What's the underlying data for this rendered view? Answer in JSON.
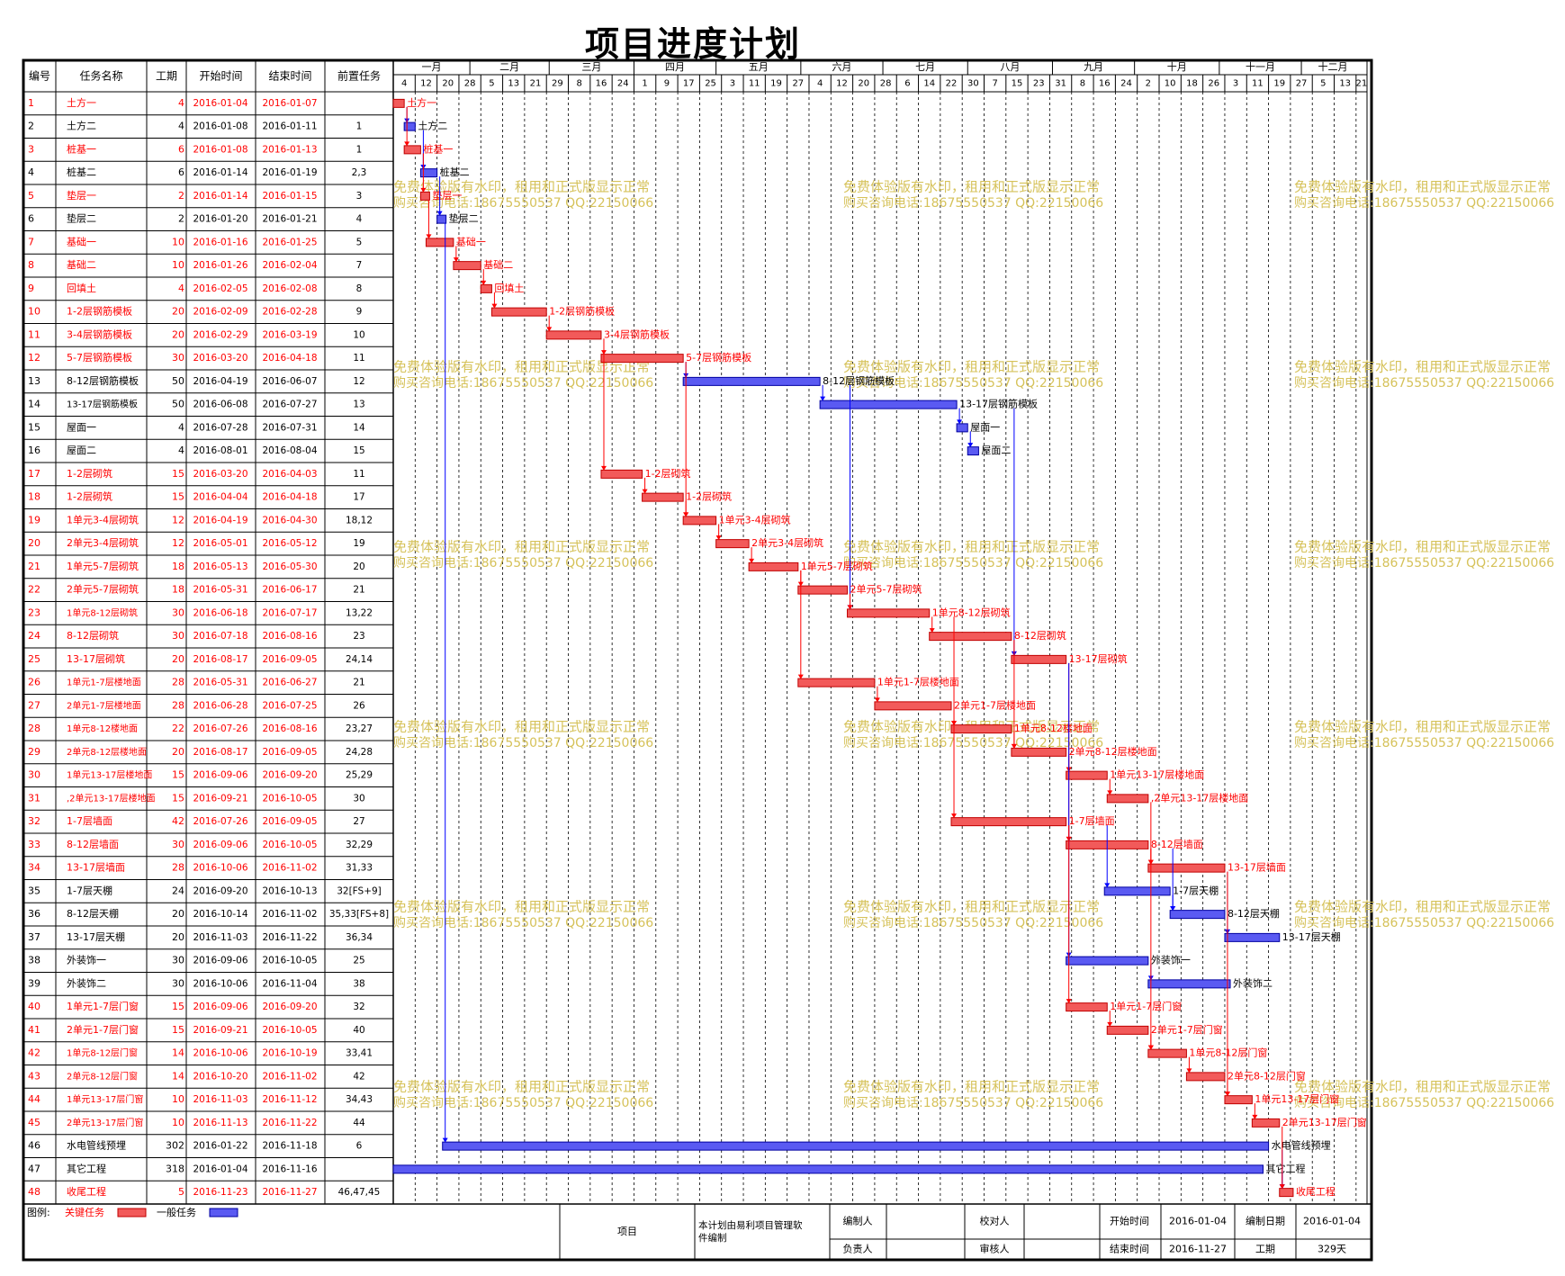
{
  "title": "项目进度计划",
  "colors": {
    "critical": "#f25a5a",
    "critical_line": "#ff0000",
    "normal": "#5a5af2",
    "normal_line": "#0000ff",
    "watermark": "#d6c25a"
  },
  "table_headers": [
    "编号",
    "任务名称",
    "工期",
    "开始时间",
    "结束时间",
    "前置任务"
  ],
  "months": [
    "一月",
    "二月",
    "三月",
    "四月",
    "五月",
    "六月",
    "七月",
    "八月",
    "九月",
    "十月",
    "十一月",
    "十二月"
  ],
  "day_ticks": [
    "4",
    "12",
    "20",
    "28",
    "5",
    "13",
    "21",
    "29",
    "8",
    "16",
    "24",
    "1",
    "9",
    "17",
    "25",
    "3",
    "11",
    "19",
    "27",
    "4",
    "12",
    "20",
    "28",
    "6",
    "14",
    "22",
    "30",
    "7",
    "15",
    "23",
    "31",
    "8",
    "16",
    "24",
    "2",
    "10",
    "18",
    "26",
    "3",
    "11",
    "19",
    "27",
    "5",
    "13",
    "21"
  ],
  "watermark": {
    "line1": "免费体验版有水印，租用和正式版显示正常",
    "line2": "购买咨询电话:18675550537 QQ:22150066"
  },
  "chart_data": {
    "type": "gantt",
    "title": "项目进度计划",
    "x_range": [
      "2016-01-04",
      "2016-12-23"
    ],
    "tasks": [
      {
        "id": "1",
        "name": "土方一",
        "dur": "4",
        "start": "2016-01-04",
        "end": "2016-01-07",
        "pred": "",
        "critical": true
      },
      {
        "id": "2",
        "name": "土方二",
        "dur": "4",
        "start": "2016-01-08",
        "end": "2016-01-11",
        "pred": "1",
        "critical": false
      },
      {
        "id": "3",
        "name": "桩基一",
        "dur": "6",
        "start": "2016-01-08",
        "end": "2016-01-13",
        "pred": "1",
        "critical": true
      },
      {
        "id": "4",
        "name": "桩基二",
        "dur": "6",
        "start": "2016-01-14",
        "end": "2016-01-19",
        "pred": "2,3",
        "critical": false
      },
      {
        "id": "5",
        "name": "垫层一",
        "dur": "2",
        "start": "2016-01-14",
        "end": "2016-01-15",
        "pred": "3",
        "critical": true
      },
      {
        "id": "6",
        "name": "垫层二",
        "dur": "2",
        "start": "2016-01-20",
        "end": "2016-01-21",
        "pred": "4",
        "critical": false
      },
      {
        "id": "7",
        "name": "基础一",
        "dur": "10",
        "start": "2016-01-16",
        "end": "2016-01-25",
        "pred": "5",
        "critical": true
      },
      {
        "id": "8",
        "name": "基础二",
        "dur": "10",
        "start": "2016-01-26",
        "end": "2016-02-04",
        "pred": "7",
        "critical": true
      },
      {
        "id": "9",
        "name": "回填土",
        "dur": "4",
        "start": "2016-02-05",
        "end": "2016-02-08",
        "pred": "8",
        "critical": true
      },
      {
        "id": "10",
        "name": "1-2层钢筋模板",
        "dur": "20",
        "start": "2016-02-09",
        "end": "2016-02-28",
        "pred": "9",
        "critical": true
      },
      {
        "id": "11",
        "name": "3-4层钢筋模板",
        "dur": "20",
        "start": "2016-02-29",
        "end": "2016-03-19",
        "pred": "10",
        "critical": true
      },
      {
        "id": "12",
        "name": "5-7层钢筋模板",
        "dur": "30",
        "start": "2016-03-20",
        "end": "2016-04-18",
        "pred": "11",
        "critical": true
      },
      {
        "id": "13",
        "name": "8-12层钢筋模板",
        "dur": "50",
        "start": "2016-04-19",
        "end": "2016-06-07",
        "pred": "12",
        "critical": false
      },
      {
        "id": "14",
        "name": "13-17层钢筋模板",
        "dur": "50",
        "start": "2016-06-08",
        "end": "2016-07-27",
        "pred": "13",
        "critical": false
      },
      {
        "id": "15",
        "name": "屋面一",
        "dur": "4",
        "start": "2016-07-28",
        "end": "2016-07-31",
        "pred": "14",
        "critical": false
      },
      {
        "id": "16",
        "name": "屋面二",
        "dur": "4",
        "start": "2016-08-01",
        "end": "2016-08-04",
        "pred": "15",
        "critical": false
      },
      {
        "id": "17",
        "name": "1-2层砌筑",
        "dur": "15",
        "start": "2016-03-20",
        "end": "2016-04-03",
        "pred": "11",
        "critical": true
      },
      {
        "id": "18",
        "name": "1-2层砌筑",
        "dur": "15",
        "start": "2016-04-04",
        "end": "2016-04-18",
        "pred": "17",
        "critical": true
      },
      {
        "id": "19",
        "name": "1单元3-4层砌筑",
        "dur": "12",
        "start": "2016-04-19",
        "end": "2016-04-30",
        "pred": "18,12",
        "critical": true
      },
      {
        "id": "20",
        "name": "2单元3-4层砌筑",
        "dur": "12",
        "start": "2016-05-01",
        "end": "2016-05-12",
        "pred": "19",
        "critical": true
      },
      {
        "id": "21",
        "name": "1单元5-7层砌筑",
        "dur": "18",
        "start": "2016-05-13",
        "end": "2016-05-30",
        "pred": "20",
        "critical": true
      },
      {
        "id": "22",
        "name": "2单元5-7层砌筑",
        "dur": "18",
        "start": "2016-05-31",
        "end": "2016-06-17",
        "pred": "21",
        "critical": true
      },
      {
        "id": "23",
        "name": "1单元8-12层砌筑",
        "dur": "30",
        "start": "2016-06-18",
        "end": "2016-07-17",
        "pred": "13,22",
        "critical": true
      },
      {
        "id": "24",
        "name": "8-12层砌筑",
        "dur": "30",
        "start": "2016-07-18",
        "end": "2016-08-16",
        "pred": "23",
        "critical": true
      },
      {
        "id": "25",
        "name": "13-17层砌筑",
        "dur": "20",
        "start": "2016-08-17",
        "end": "2016-09-05",
        "pred": "24,14",
        "critical": true
      },
      {
        "id": "26",
        "name": "1单元1-7层楼地面",
        "dur": "28",
        "start": "2016-05-31",
        "end": "2016-06-27",
        "pred": "21",
        "critical": true
      },
      {
        "id": "27",
        "name": "2单元1-7层楼地面",
        "dur": "28",
        "start": "2016-06-28",
        "end": "2016-07-25",
        "pred": "26",
        "critical": true
      },
      {
        "id": "28",
        "name": "1单元8-12楼地面",
        "dur": "22",
        "start": "2016-07-26",
        "end": "2016-08-16",
        "pred": "23,27",
        "critical": true
      },
      {
        "id": "29",
        "name": "2单元8-12层楼地面",
        "dur": "20",
        "start": "2016-08-17",
        "end": "2016-09-05",
        "pred": "24,28",
        "critical": true
      },
      {
        "id": "30",
        "name": "1单元13-17层楼地面",
        "dur": "15",
        "start": "2016-09-06",
        "end": "2016-09-20",
        "pred": "25,29",
        "critical": true
      },
      {
        "id": "31",
        "name": ",2单元13-17层楼地面",
        "dur": "15",
        "start": "2016-09-21",
        "end": "2016-10-05",
        "pred": "30",
        "critical": true
      },
      {
        "id": "32",
        "name": "1-7层墙面",
        "dur": "42",
        "start": "2016-07-26",
        "end": "2016-09-05",
        "pred": "27",
        "critical": true
      },
      {
        "id": "33",
        "name": "8-12层墙面",
        "dur": "30",
        "start": "2016-09-06",
        "end": "2016-10-05",
        "pred": "32,29",
        "critical": true
      },
      {
        "id": "34",
        "name": "13-17层墙面",
        "dur": "28",
        "start": "2016-10-06",
        "end": "2016-11-02",
        "pred": "31,33",
        "critical": true
      },
      {
        "id": "35",
        "name": "1-7层天棚",
        "dur": "24",
        "start": "2016-09-20",
        "end": "2016-10-13",
        "pred": "32[FS+9]",
        "critical": false
      },
      {
        "id": "36",
        "name": "8-12层天棚",
        "dur": "20",
        "start": "2016-10-14",
        "end": "2016-11-02",
        "pred": "35,33[FS+8]",
        "critical": false
      },
      {
        "id": "37",
        "name": "13-17层天棚",
        "dur": "20",
        "start": "2016-11-03",
        "end": "2016-11-22",
        "pred": "36,34",
        "critical": false
      },
      {
        "id": "38",
        "name": "外装饰一",
        "dur": "30",
        "start": "2016-09-06",
        "end": "2016-10-05",
        "pred": "25",
        "critical": false
      },
      {
        "id": "39",
        "name": "外装饰二",
        "dur": "30",
        "start": "2016-10-06",
        "end": "2016-11-04",
        "pred": "38",
        "critical": false
      },
      {
        "id": "40",
        "name": "1单元1-7层门窗",
        "dur": "15",
        "start": "2016-09-06",
        "end": "2016-09-20",
        "pred": "32",
        "critical": true
      },
      {
        "id": "41",
        "name": "2单元1-7层门窗",
        "dur": "15",
        "start": "2016-09-21",
        "end": "2016-10-05",
        "pred": "40",
        "critical": true
      },
      {
        "id": "42",
        "name": "1单元8-12层门窗",
        "dur": "14",
        "start": "2016-10-06",
        "end": "2016-10-19",
        "pred": "33,41",
        "critical": true
      },
      {
        "id": "43",
        "name": "2单元8-12层门窗",
        "dur": "14",
        "start": "2016-10-20",
        "end": "2016-11-02",
        "pred": "42",
        "critical": true
      },
      {
        "id": "44",
        "name": "1单元13-17层门窗",
        "dur": "10",
        "start": "2016-11-03",
        "end": "2016-11-12",
        "pred": "34,43",
        "critical": true
      },
      {
        "id": "45",
        "name": "2单元13-17层门窗",
        "dur": "10",
        "start": "2016-11-13",
        "end": "2016-11-22",
        "pred": "44",
        "critical": true
      },
      {
        "id": "46",
        "name": "水电管线预埋",
        "dur": "302",
        "start": "2016-01-22",
        "end": "2016-11-18",
        "pred": "6",
        "critical": false
      },
      {
        "id": "47",
        "name": "其它工程",
        "dur": "318",
        "start": "2016-01-04",
        "end": "2016-11-16",
        "pred": "",
        "critical": false
      },
      {
        "id": "48",
        "name": "收尾工程",
        "dur": "5",
        "start": "2016-11-23",
        "end": "2016-11-27",
        "pred": "46,47,45",
        "critical": true
      }
    ]
  },
  "legend": {
    "label": "图例:",
    "critical": "关键任务",
    "normal": "一般任务"
  },
  "footer": {
    "project_label": "项目",
    "note": "本计划由易利项目管理软件编制",
    "compiler_label": "编制人",
    "responsible_label": "负责人",
    "checker_label": "校对人",
    "reviewer_label": "审核人",
    "start_label": "开始时间",
    "start_value": "2016-01-04",
    "end_label": "结束时间",
    "end_value": "2016-11-27",
    "date_label": "编制日期",
    "date_value": "2016-01-04",
    "duration_label": "工期",
    "duration_value": "329天"
  }
}
